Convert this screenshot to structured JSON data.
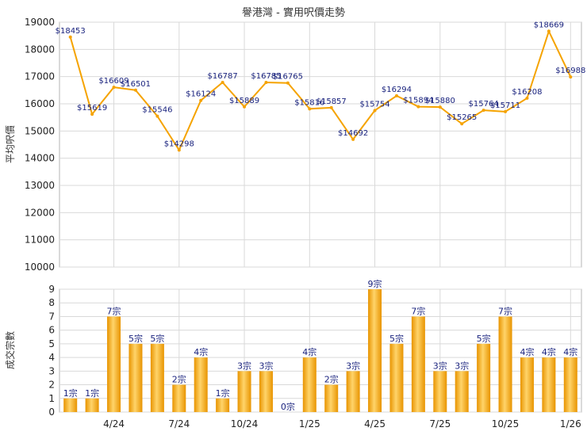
{
  "chart_data": [
    {
      "type": "line",
      "title": "譽港灣 - 實用呎價走勢",
      "ylabel": "平均呎價",
      "ylim": [
        10000,
        19000
      ],
      "yticks": [
        10000,
        11000,
        12000,
        13000,
        14000,
        15000,
        16000,
        17000,
        18000,
        19000
      ],
      "grid": true,
      "color": "#f5a300",
      "values": [
        18453,
        15619,
        16609,
        16501,
        15546,
        14298,
        16124,
        16787,
        15889,
        16785,
        16765,
        15816,
        15857,
        14692,
        15754,
        16294,
        15894,
        15880,
        15265,
        15764,
        15711,
        16208,
        18669,
        16988
      ],
      "labels": [
        "$18453",
        "$15619",
        "$16609",
        "$16501",
        "$15546",
        "$14298",
        "$16124",
        "$16787",
        "$15889",
        "$16785",
        "$16765",
        "$15816",
        "$15857",
        "$14692",
        "$15754",
        "$16294",
        "$15894",
        "$15880",
        "$15265",
        "$15764",
        "$15711",
        "$16208",
        "$18669",
        "$16988"
      ]
    },
    {
      "type": "bar",
      "ylabel": "成交宗數",
      "ylim": [
        0,
        9
      ],
      "yticks": [
        0,
        1,
        2,
        3,
        4,
        5,
        6,
        7,
        8,
        9
      ],
      "grid": true,
      "color": "#f5a300",
      "values": [
        1,
        1,
        7,
        5,
        5,
        2,
        4,
        1,
        3,
        3,
        0,
        4,
        2,
        3,
        9,
        5,
        7,
        3,
        3,
        5,
        7,
        4,
        4,
        4
      ],
      "labels": [
        "1宗",
        "1宗",
        "7宗",
        "5宗",
        "5宗",
        "2宗",
        "4宗",
        "1宗",
        "3宗",
        "3宗",
        "0宗",
        "4宗",
        "2宗",
        "3宗",
        "9宗",
        "5宗",
        "7宗",
        "3宗",
        "3宗",
        "5宗",
        "7宗",
        "4宗",
        "4宗",
        "4宗"
      ],
      "xticks": [
        {
          "index": 2,
          "label": "4/24"
        },
        {
          "index": 5,
          "label": "7/24"
        },
        {
          "index": 8,
          "label": "10/24"
        },
        {
          "index": 11,
          "label": "1/25"
        },
        {
          "index": 14,
          "label": "4/25"
        },
        {
          "index": 17,
          "label": "7/25"
        },
        {
          "index": 20,
          "label": "10/25"
        },
        {
          "index": 23,
          "label": "1/26"
        }
      ]
    }
  ]
}
